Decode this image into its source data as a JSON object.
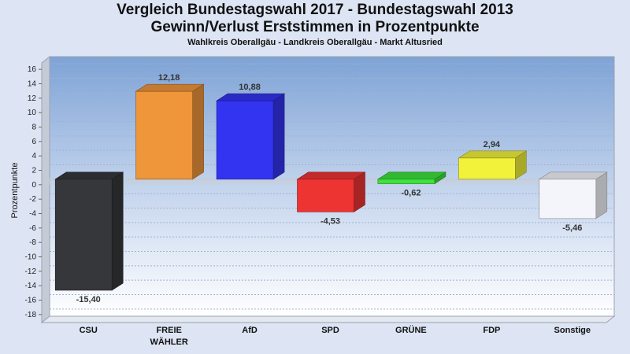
{
  "title": "Vergleich Bundestagswahl 2017 - Bundestagswahl 2013",
  "subtitle1": "Gewinn/Verlust Erststimmen in Prozentpunkte",
  "subtitle2": "Wahlkreis Oberallgäu - Landkreis Oberallgäu - Markt Altusried",
  "chart_data": {
    "type": "bar",
    "categories": [
      "CSU",
      "FREIE WÄHLER",
      "AfD",
      "SPD",
      "GRÜNE",
      "FDP",
      "Sonstige"
    ],
    "values": [
      -15.4,
      12.18,
      10.88,
      -4.53,
      -0.62,
      2.94,
      -5.46
    ],
    "value_labels": [
      "-15,40",
      "12,18",
      "10,88",
      "-4,53",
      "-0,62",
      "2,94",
      "-5,46"
    ],
    "colors": [
      "#35373b",
      "#ef953a",
      "#3333f2",
      "#ee3333",
      "#3ce33c",
      "#f2f23a",
      "#f3f5fa"
    ],
    "ylabel": "Prozentpunkte",
    "ylim": [
      -19,
      17
    ],
    "yticks": [
      16,
      14,
      12,
      10,
      8,
      6,
      4,
      2,
      0,
      -2,
      -4,
      -6,
      -8,
      -10,
      -12,
      -14,
      -16,
      -18
    ],
    "grid": true,
    "style": "3d"
  }
}
